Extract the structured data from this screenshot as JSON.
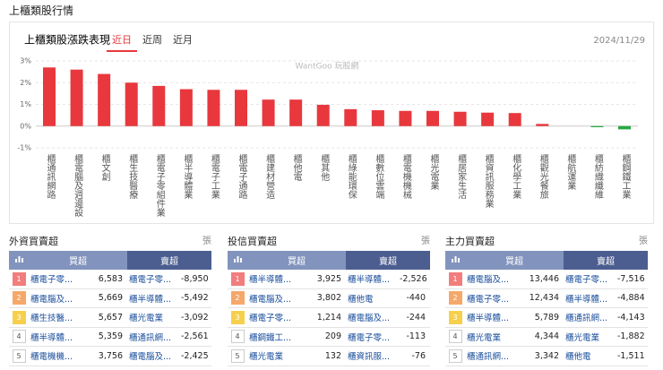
{
  "header": {
    "title": "上櫃類股行情"
  },
  "chart_data": {
    "type": "bar",
    "title": "上櫃類股漲跌表現",
    "tabs": [
      "近日",
      "近周",
      "近月"
    ],
    "date": "2024/11/29",
    "watermark": "WantGoo 玩股網",
    "categories": [
      "櫃通訊網路",
      "櫃電腦及週邊設",
      "櫃文創",
      "櫃生技醫療",
      "櫃電子零組件業",
      "櫃半導體業",
      "櫃電子工業",
      "櫃電子通路",
      "櫃建材營造",
      "櫃他電",
      "櫃其他",
      "櫃綠能環保",
      "櫃數位雲端",
      "櫃電機機械",
      "櫃光電業",
      "櫃居家生活",
      "櫃資訊服務業",
      "櫃化學工業",
      "櫃觀光餐旅",
      "櫃航運業",
      "櫃紡織纖維",
      "櫃鋼鐵工業"
    ],
    "values": [
      2.7,
      2.6,
      2.4,
      2.0,
      1.85,
      1.7,
      1.67,
      1.67,
      1.22,
      1.22,
      0.98,
      0.78,
      0.73,
      0.7,
      0.7,
      0.66,
      0.62,
      0.6,
      0.1,
      0,
      -0.05,
      -0.15
    ],
    "up_color": "#e8383d",
    "down_color": "#27a844",
    "ylim": [
      -1,
      3
    ],
    "yticks": [
      {
        "value": 3,
        "label": "3%"
      },
      {
        "value": 2,
        "label": "2%"
      },
      {
        "value": 1,
        "label": "1%"
      },
      {
        "value": 0,
        "label": "0%"
      },
      {
        "value": -1,
        "label": "-1%"
      }
    ],
    "grid": true
  },
  "panels": [
    {
      "title": "外資買賣超",
      "unit": "張",
      "columns": [
        "買超",
        "賣超"
      ],
      "rows": [
        {
          "rank": 1,
          "buy_name": "櫃電子零...",
          "buy_value": "6,583",
          "sell_name": "櫃電子零...",
          "sell_value": "-8,950"
        },
        {
          "rank": 2,
          "buy_name": "櫃電腦及...",
          "buy_value": "5,669",
          "sell_name": "櫃半導體...",
          "sell_value": "-5,492"
        },
        {
          "rank": 3,
          "buy_name": "櫃生技醫...",
          "buy_value": "5,657",
          "sell_name": "櫃光電業",
          "sell_value": "-3,092"
        },
        {
          "rank": 4,
          "buy_name": "櫃半導體...",
          "buy_value": "5,359",
          "sell_name": "櫃通訊網...",
          "sell_value": "-2,561"
        },
        {
          "rank": 5,
          "buy_name": "櫃電機機...",
          "buy_value": "3,756",
          "sell_name": "櫃電腦及...",
          "sell_value": "-2,425"
        }
      ]
    },
    {
      "title": "投信買賣超",
      "unit": "張",
      "columns": [
        "買超",
        "賣超"
      ],
      "rows": [
        {
          "rank": 1,
          "buy_name": "櫃半導體...",
          "buy_value": "3,925",
          "sell_name": "櫃半導體...",
          "sell_value": "-2,526"
        },
        {
          "rank": 2,
          "buy_name": "櫃電腦及...",
          "buy_value": "3,802",
          "sell_name": "櫃他電",
          "sell_value": "-440"
        },
        {
          "rank": 3,
          "buy_name": "櫃電子零...",
          "buy_value": "1,214",
          "sell_name": "櫃電腦及...",
          "sell_value": "-244"
        },
        {
          "rank": 4,
          "buy_name": "櫃鋼鐵工...",
          "buy_value": "209",
          "sell_name": "櫃電子零...",
          "sell_value": "-113"
        },
        {
          "rank": 5,
          "buy_name": "櫃光電業",
          "buy_value": "132",
          "sell_name": "櫃資訊服...",
          "sell_value": "-76"
        }
      ]
    },
    {
      "title": "主力買賣超",
      "unit": "張",
      "columns": [
        "買超",
        "賣超"
      ],
      "rows": [
        {
          "rank": 1,
          "buy_name": "櫃電腦及...",
          "buy_value": "13,446",
          "sell_name": "櫃電子零...",
          "sell_value": "-7,516"
        },
        {
          "rank": 2,
          "buy_name": "櫃電子零...",
          "buy_value": "12,434",
          "sell_name": "櫃半導體...",
          "sell_value": "-4,884"
        },
        {
          "rank": 3,
          "buy_name": "櫃半導體...",
          "buy_value": "5,789",
          "sell_name": "櫃通訊網...",
          "sell_value": "-4,143"
        },
        {
          "rank": 4,
          "buy_name": "櫃光電業",
          "buy_value": "4,344",
          "sell_name": "櫃光電業",
          "sell_value": "-1,882"
        },
        {
          "rank": 5,
          "buy_name": "櫃通訊網...",
          "buy_value": "3,342",
          "sell_name": "櫃他電",
          "sell_value": "-1,511"
        }
      ]
    }
  ]
}
